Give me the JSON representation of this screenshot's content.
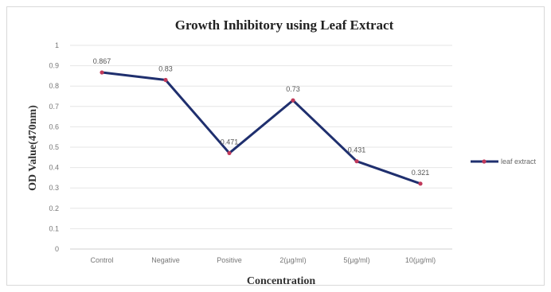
{
  "chart_data": {
    "type": "line",
    "title": "Growth Inhibitory using Leaf Extract",
    "xlabel": "Concentration",
    "ylabel": "OD Value(470nm)",
    "categories": [
      "Control",
      "Negative",
      "Positive",
      "2(µg/ml)",
      "5(µg/ml)",
      "10(µg/ml)"
    ],
    "series": [
      {
        "name": "leaf extract",
        "values": [
          0.867,
          0.83,
          0.471,
          0.73,
          0.431,
          0.321
        ],
        "data_labels": [
          "0.867",
          "0.83",
          "0.471",
          "0.73",
          "0.431",
          "0.321"
        ]
      }
    ],
    "ylim": [
      0,
      1
    ],
    "yticks": [
      "0",
      "0.1",
      "0.2",
      "0.3",
      "0.4",
      "0.5",
      "0.6",
      "0.7",
      "0.8",
      "0.9",
      "1"
    ],
    "grid": true,
    "legend": "right",
    "line_color": "#1f2f6e",
    "marker_color": "#c0395a"
  }
}
